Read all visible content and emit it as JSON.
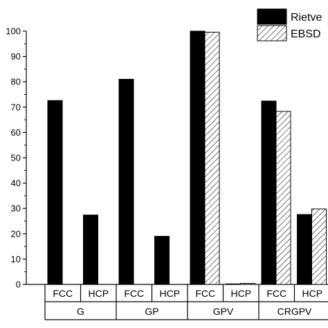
{
  "chart_data": {
    "type": "bar",
    "groups": [
      "G",
      "GP",
      "GPV",
      "CRGPV"
    ],
    "phases": [
      "FCC",
      "HCP"
    ],
    "series": [
      {
        "name": "Rietve",
        "pattern": "solid",
        "color": "#000000",
        "values": [
          72.6,
          27.4,
          81.0,
          19.0,
          100.0,
          0.0,
          72.4,
          27.6
        ]
      },
      {
        "name": "EBSD",
        "pattern": "hatched",
        "color": "#000000",
        "values": [
          null,
          null,
          null,
          null,
          99.6,
          0.4,
          68.3,
          29.8
        ]
      }
    ],
    "ylim": [
      0,
      100
    ],
    "yticks": [
      0,
      10,
      20,
      30,
      40,
      50,
      60,
      70,
      80,
      90,
      100
    ],
    "legend_position": "top-right"
  }
}
